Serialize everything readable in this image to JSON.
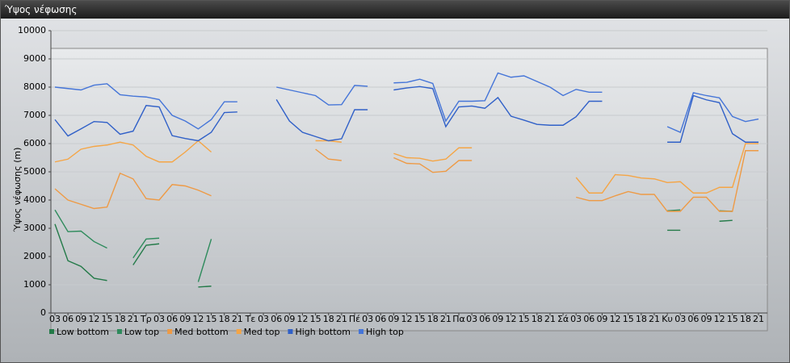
{
  "window": {
    "title": "Ύψος νέφωσης"
  },
  "chart_data": {
    "type": "line",
    "y_label": "Ύψος νέφωσης (m)",
    "categories": [
      "03",
      "06",
      "09",
      "12",
      "15",
      "18",
      "21",
      "Τρ",
      "03",
      "06",
      "09",
      "12",
      "15",
      "18",
      "21",
      "Τε",
      "03",
      "06",
      "09",
      "12",
      "15",
      "18",
      "21",
      "Πέ",
      "03",
      "06",
      "09",
      "12",
      "15",
      "18",
      "21",
      "Πα",
      "03",
      "06",
      "09",
      "12",
      "15",
      "18",
      "21",
      "Σά",
      "03",
      "06",
      "09",
      "12",
      "15",
      "18",
      "21",
      "Κυ",
      "03",
      "06",
      "09",
      "12",
      "15",
      "18",
      "21"
    ],
    "series": [
      {
        "name": "Low bottom",
        "color": "#237a48",
        "values": [
          3150,
          1850,
          1650,
          1230,
          1150,
          null,
          1700,
          2400,
          2450,
          null,
          null,
          920,
          950,
          null,
          null,
          null,
          null,
          null,
          null,
          null,
          null,
          null,
          null,
          null,
          null,
          null,
          null,
          null,
          null,
          null,
          null,
          null,
          null,
          null,
          null,
          null,
          null,
          null,
          null,
          null,
          null,
          null,
          null,
          null,
          null,
          null,
          null,
          2930,
          2930,
          null,
          null,
          3250,
          3280,
          null,
          null
        ]
      },
      {
        "name": "Low top",
        "color": "#2e8b5c",
        "values": [
          3650,
          2880,
          2900,
          2530,
          2300,
          null,
          1950,
          2620,
          2650,
          null,
          null,
          1100,
          2620,
          null,
          null,
          null,
          null,
          null,
          null,
          null,
          null,
          null,
          null,
          null,
          null,
          null,
          null,
          null,
          null,
          null,
          null,
          null,
          null,
          null,
          null,
          null,
          null,
          null,
          null,
          null,
          null,
          null,
          null,
          null,
          null,
          null,
          null,
          3620,
          3650,
          null,
          null,
          3620,
          3600,
          null,
          null
        ]
      },
      {
        "name": "Med bottom",
        "color": "#ee9a45",
        "values": [
          4400,
          4000,
          3850,
          3700,
          3750,
          4950,
          4750,
          4050,
          4000,
          4550,
          4500,
          4350,
          4150,
          null,
          null,
          null,
          null,
          null,
          null,
          null,
          5800,
          5450,
          5400,
          null,
          null,
          null,
          5500,
          5300,
          5280,
          4980,
          5020,
          5400,
          5400,
          null,
          null,
          null,
          null,
          null,
          null,
          null,
          4100,
          3980,
          3980,
          4150,
          4300,
          4200,
          4200,
          3600,
          3600,
          4100,
          4100,
          3600,
          3600,
          5750,
          5750
        ]
      },
      {
        "name": "Med top",
        "color": "#f5a545",
        "values": [
          5350,
          5450,
          5800,
          5900,
          5950,
          6050,
          5950,
          5550,
          5350,
          5350,
          5700,
          6100,
          5700,
          null,
          null,
          null,
          null,
          null,
          null,
          null,
          6100,
          6100,
          6050,
          null,
          null,
          null,
          5650,
          5500,
          5480,
          5380,
          5450,
          5850,
          5850,
          null,
          null,
          null,
          null,
          null,
          null,
          null,
          4800,
          4250,
          4250,
          4900,
          4870,
          4780,
          4750,
          4620,
          4650,
          4250,
          4250,
          4450,
          4450,
          6000,
          6000
        ]
      },
      {
        "name": "High bottom",
        "color": "#3060c8",
        "values": [
          6850,
          6270,
          6520,
          6780,
          6750,
          6330,
          6440,
          7350,
          7300,
          6280,
          6180,
          6100,
          6400,
          7100,
          7120,
          null,
          null,
          7560,
          6800,
          6400,
          6250,
          6100,
          6170,
          7200,
          7200,
          null,
          7900,
          7970,
          8020,
          7950,
          6600,
          7300,
          7330,
          7250,
          7630,
          6970,
          6830,
          6680,
          6650,
          6650,
          6950,
          7500,
          7500,
          null,
          null,
          null,
          null,
          6050,
          6050,
          7700,
          7550,
          7450,
          6350,
          6050,
          6050
        ]
      },
      {
        "name": "High top",
        "color": "#4575d8",
        "values": [
          8000,
          7950,
          7900,
          8070,
          8120,
          7730,
          7680,
          7650,
          7560,
          7000,
          6800,
          6520,
          6850,
          7480,
          7480,
          null,
          null,
          8000,
          7900,
          7800,
          7700,
          7370,
          7380,
          8060,
          8030,
          null,
          8150,
          8170,
          8280,
          8130,
          6800,
          7500,
          7500,
          7520,
          8500,
          8350,
          8400,
          8200,
          8000,
          7700,
          7920,
          7820,
          7820,
          null,
          null,
          null,
          null,
          6600,
          6400,
          7800,
          7700,
          7620,
          6960,
          6780,
          6870
        ]
      }
    ],
    "ylim": [
      0,
      10000
    ],
    "yticks": [
      0,
      1000,
      2000,
      3000,
      4000,
      5000,
      6000,
      7000,
      8000,
      9000,
      10000
    ],
    "grid": true
  }
}
